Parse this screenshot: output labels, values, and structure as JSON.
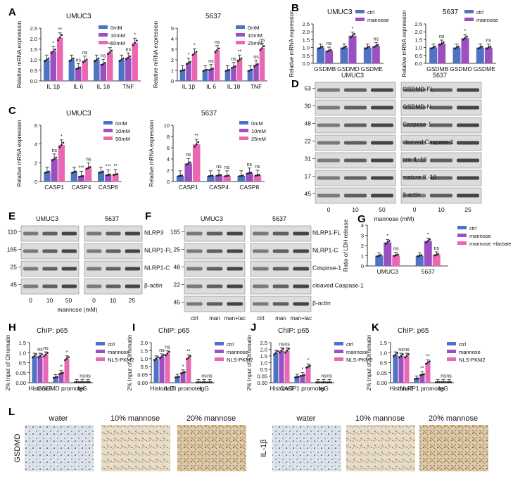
{
  "colors": {
    "c0": "#4e73c4",
    "c1": "#9b4fc0",
    "c2": "#ea68b3",
    "dot": "#222222"
  },
  "panel_letters": [
    "A",
    "B",
    "C",
    "D",
    "E",
    "F",
    "G",
    "H",
    "I",
    "J",
    "K",
    "L"
  ],
  "chart_data": [
    {
      "id": "A1",
      "panel": "A",
      "type": "bar",
      "title": "UMUC3",
      "ylabel": "Relative mRNA expression",
      "categories": [
        "IL 1β",
        "IL 6",
        "IL 18",
        "TNF"
      ],
      "ylim": [
        0,
        2.5
      ],
      "yticks": [
        "0.0",
        "0.5",
        "1.0",
        "1.5",
        "2.0",
        "2.5"
      ],
      "legend": [
        "0mM",
        "10mM",
        "50mM"
      ],
      "series": [
        {
          "name": "0mM",
          "values": [
            1,
            1,
            1,
            1
          ]
        },
        {
          "name": "10mM",
          "values": [
            1.4,
            0.6,
            0.8,
            1.1
          ]
        },
        {
          "name": "50mM",
          "values": [
            2.05,
            0.95,
            1.35,
            1.8
          ]
        }
      ],
      "sig": [
        [
          "",
          "*",
          "**"
        ],
        [
          "",
          "ns",
          "ns"
        ],
        [
          "",
          "ns",
          "**"
        ],
        [
          "",
          "ns",
          "*"
        ]
      ]
    },
    {
      "id": "A2",
      "panel": "",
      "type": "bar",
      "title": "5637",
      "ylabel": "Relative mRNA expression",
      "categories": [
        "IL 1β",
        "IL 6",
        "IL 18",
        "TNF"
      ],
      "ylim": [
        0,
        5
      ],
      "yticks": [
        "0",
        "1",
        "2",
        "3",
        "4",
        "5"
      ],
      "legend": [
        "0mM",
        "10mM",
        "25mM"
      ],
      "series": [
        {
          "name": "0mM",
          "values": [
            1,
            1,
            1,
            1
          ]
        },
        {
          "name": "10mM",
          "values": [
            1.7,
            1.1,
            1.3,
            1.5
          ]
        },
        {
          "name": "25mM",
          "values": [
            2.6,
            2.9,
            2.0,
            3.1
          ]
        }
      ],
      "sig": [
        [
          "",
          "*",
          "*"
        ],
        [
          "",
          "ns",
          "ns"
        ],
        [
          "",
          "ns",
          "**"
        ],
        [
          "",
          "ns",
          "ns"
        ]
      ]
    },
    {
      "id": "B1",
      "panel": "B",
      "type": "bar",
      "title": "UMUC3",
      "ylabel": "Relative mRNA expression",
      "categories": [
        "GSDMB",
        "GSDMD",
        "GSDME"
      ],
      "ylim": [
        0,
        2.5
      ],
      "yticks": [
        "0.0",
        "0.5",
        "1.0",
        "1.5",
        "2.0",
        "2.5"
      ],
      "legend": [
        "ctrl",
        "mannose"
      ],
      "series": [
        {
          "name": "ctrl",
          "values": [
            1,
            1,
            1
          ]
        },
        {
          "name": "mannose",
          "values": [
            0.8,
            1.75,
            1.1
          ]
        }
      ],
      "sig": [
        [
          "",
          "ns"
        ],
        [
          "",
          "*"
        ],
        [
          "",
          "ns"
        ]
      ]
    },
    {
      "id": "B2",
      "panel": "",
      "type": "bar",
      "title": "5637",
      "ylabel": "Relative mRNA expression",
      "categories": [
        "GSDMB",
        "GSDMD",
        "GSDME"
      ],
      "ylim": [
        0,
        2.5
      ],
      "yticks": [
        "0.0",
        "0.5",
        "1.0",
        "1.5",
        "2.0",
        "2.5"
      ],
      "legend": [
        "ctrl",
        "mannose"
      ],
      "series": [
        {
          "name": "ctrl",
          "values": [
            1,
            1,
            1
          ]
        },
        {
          "name": "mannose",
          "values": [
            1.25,
            1.6,
            1.0
          ]
        }
      ],
      "sig": [
        [
          "",
          "ns"
        ],
        [
          "",
          "*"
        ],
        [
          "",
          "ns"
        ]
      ]
    },
    {
      "id": "C1",
      "panel": "C",
      "type": "bar",
      "title": "UMUC3",
      "ylabel": "Relative mRNA expression",
      "categories": [
        "CASP1",
        "CASP4",
        "CASP8"
      ],
      "ylim": [
        0,
        6
      ],
      "yticks": [
        "0",
        "2",
        "4",
        "6"
      ],
      "legend": [
        "0mM",
        "10mM",
        "50mM"
      ],
      "series": [
        {
          "name": "0mM",
          "values": [
            1,
            1,
            1
          ]
        },
        {
          "name": "10mM",
          "values": [
            2.4,
            0.55,
            0.7
          ]
        },
        {
          "name": "50mM",
          "values": [
            3.9,
            1.45,
            0.75
          ]
        }
      ],
      "sig": [
        [
          "",
          "ns",
          "*"
        ],
        [
          "",
          "***",
          "ns"
        ],
        [
          "",
          "***",
          "**"
        ]
      ]
    },
    {
      "id": "C2",
      "panel": "",
      "type": "bar",
      "title": "5637",
      "ylabel": "Relative mRNA expression",
      "categories": [
        "CASP1",
        "CASP4",
        "CASP8"
      ],
      "ylim": [
        0,
        10
      ],
      "yticks": [
        "0",
        "2",
        "4",
        "6",
        "8",
        "10"
      ],
      "legend": [
        "0mM",
        "10mM",
        "25mM"
      ],
      "series": [
        {
          "name": "0mM",
          "values": [
            1,
            1,
            1
          ]
        },
        {
          "name": "10mM",
          "values": [
            3.2,
            1.1,
            1.5
          ]
        },
        {
          "name": "25mM",
          "values": [
            6.6,
            1.0,
            1.1
          ]
        }
      ],
      "sig": [
        [
          "",
          "ns",
          "**"
        ],
        [
          "",
          "ns",
          "ns"
        ],
        [
          "",
          "ns",
          "ns"
        ]
      ]
    },
    {
      "id": "G",
      "panel": "G",
      "type": "bar",
      "title": "",
      "ylabel": "Ratio of LDH release",
      "categories": [
        "UMUC3",
        "5637"
      ],
      "ylim": [
        0,
        4
      ],
      "yticks": [
        "0",
        "1",
        "2",
        "3",
        "4"
      ],
      "legend": [
        "ctrl",
        "mannose",
        "mannose +lactate"
      ],
      "series": [
        {
          "name": "ctrl",
          "values": [
            1,
            1
          ]
        },
        {
          "name": "mannose",
          "values": [
            2.3,
            2.45
          ]
        },
        {
          "name": "mannose +lactate",
          "values": [
            1.05,
            1.1
          ]
        }
      ],
      "sig": [
        [
          "",
          "*",
          "ns"
        ],
        [
          "",
          "*",
          "ns"
        ]
      ]
    },
    {
      "id": "H",
      "panel": "H",
      "type": "bar",
      "title": "ChIP: p65",
      "ylabel": "2% Input of Chromatin",
      "categories": [
        "Histone3",
        "GSDMD promoter",
        "IgG"
      ],
      "ylim": [
        0,
        1.5
      ],
      "yticks": [
        "0.00",
        "0.05",
        "0.5",
        "1.0",
        "1.5"
      ],
      "legend": [
        "ctrl",
        "mannose",
        "NLS-PKM2"
      ],
      "series": [
        {
          "name": "ctrl",
          "values": [
            1.0,
            0.2,
            0.02
          ]
        },
        {
          "name": "mannose",
          "values": [
            1.0,
            0.35,
            0.02
          ]
        },
        {
          "name": "NLS-PKM2",
          "values": [
            1.05,
            0.9,
            0.02
          ]
        }
      ],
      "sig": [
        [
          "",
          "ns",
          "ns"
        ],
        [
          "",
          "*",
          "*"
        ],
        [
          "",
          "ns",
          "ns"
        ]
      ]
    },
    {
      "id": "I",
      "panel": "I",
      "type": "bar",
      "title": "ChIP: p65",
      "ylabel": "2% Input of Chromatin",
      "categories": [
        "Histone3",
        "IL1B promoter",
        "IgG"
      ],
      "ylim": [
        0,
        2.0
      ],
      "yticks": [
        "0.00",
        "0.05",
        "0.5",
        "1.0",
        "1.5",
        "2.0"
      ],
      "legend": [
        "ctrl",
        "mannose",
        "NLS-PKM2"
      ],
      "series": [
        {
          "name": "ctrl",
          "values": [
            1.2,
            0.28,
            0.02
          ]
        },
        {
          "name": "mannose",
          "values": [
            1.3,
            0.5,
            0.02
          ]
        },
        {
          "name": "NLS-PKM2",
          "values": [
            1.45,
            1.25,
            0.02
          ]
        }
      ],
      "sig": [
        [
          "",
          "ns",
          "ns"
        ],
        [
          "",
          "*",
          "**"
        ],
        [
          "",
          "ns",
          "ns"
        ]
      ]
    },
    {
      "id": "J",
      "panel": "J",
      "type": "bar",
      "title": "ChIP: p65",
      "ylabel": "2% Input of Chromatin",
      "categories": [
        "Histone3",
        "CASP1 promoter",
        "IgG"
      ],
      "ylim": [
        0,
        2.5
      ],
      "yticks": [
        "0.00",
        "0.05",
        "0.5",
        "1.0",
        "1.5",
        "2.0",
        "2.5"
      ],
      "legend": [
        "ctrl",
        "mannose",
        "NLS-PKM2"
      ],
      "series": [
        {
          "name": "ctrl",
          "values": [
            1.85,
            0.35,
            0.02
          ]
        },
        {
          "name": "mannose",
          "values": [
            2.0,
            0.45,
            0.02
          ]
        },
        {
          "name": "NLS-PKM2",
          "values": [
            2.0,
            1.0,
            0.02
          ]
        }
      ],
      "sig": [
        [
          "",
          "ns",
          "ns"
        ],
        [
          "",
          "*",
          "*"
        ],
        [
          "",
          "ns",
          "ns"
        ]
      ]
    },
    {
      "id": "K",
      "panel": "K",
      "type": "bar",
      "title": "ChIP: p65",
      "ylabel": "2% Input of Chromatin",
      "categories": [
        "Histone3",
        "NLRP1 promoter",
        "IgG"
      ],
      "ylim": [
        0,
        1.5
      ],
      "yticks": [
        "0.00",
        "0.05",
        "0.5",
        "1.0",
        "1.5"
      ],
      "legend": [
        "ctrl",
        "mannose",
        "NLS-PKM2"
      ],
      "series": [
        {
          "name": "ctrl",
          "values": [
            1.05,
            0.15,
            0.02
          ]
        },
        {
          "name": "mannose",
          "values": [
            1.0,
            0.3,
            0.02
          ]
        },
        {
          "name": "NLS-PKM2",
          "values": [
            1.0,
            0.75,
            0.02
          ]
        }
      ],
      "sig": [
        [
          "",
          "ns",
          "ns"
        ],
        [
          "",
          "**",
          "**"
        ],
        [
          "",
          "ns",
          "ns"
        ]
      ]
    }
  ],
  "blots": {
    "D": {
      "heads": [
        "UMUC3",
        "5637"
      ],
      "mw": [
        "53",
        "30",
        "48",
        "22",
        "31",
        "17",
        "45"
      ],
      "labels": [
        "GSDMD-FL",
        "GSDMD-N",
        "Caspase-1",
        "cleaved Caspase-1",
        "pro-IL-1β",
        "mature IL-1β",
        "β-actin"
      ],
      "lanes_left": [
        "0",
        "10",
        "50"
      ],
      "lanes_right": [
        "0",
        "10",
        "25"
      ],
      "xaxis": "mannose (mM)"
    },
    "E": {
      "heads": [
        "UMUC3",
        "5637"
      ],
      "mw": [
        "110",
        "165",
        "25",
        "45"
      ],
      "labels": [
        "NLRP3",
        "NLRP1-FL",
        "NLRP1-C",
        "β-actin"
      ],
      "lanes_left": [
        "0",
        "10",
        "50"
      ],
      "lanes_right": [
        "0",
        "10",
        "25"
      ],
      "xaxis": "mannose (mM)"
    },
    "F": {
      "heads": [
        "UMUC3",
        "5637"
      ],
      "mw": [
        "165",
        "25",
        "48",
        "22",
        "45"
      ],
      "labels": [
        "NLRP1-FL",
        "NLRP1-C",
        "Caspase-1",
        "cleaved Caspase-1",
        "β-actin"
      ],
      "lanes": [
        "ctrl",
        "man",
        "man+lac"
      ]
    }
  },
  "ihc": {
    "left_label": "GSDMD",
    "right_label": "IL-1β",
    "cols": [
      "water",
      "10% mannose",
      "20% mannose"
    ]
  }
}
